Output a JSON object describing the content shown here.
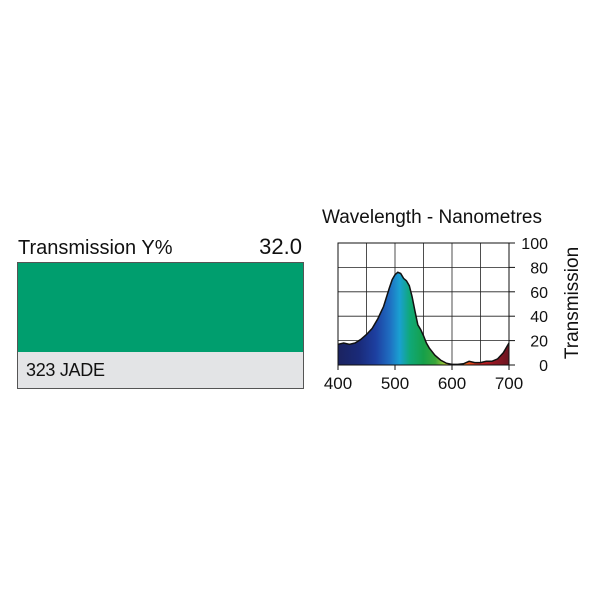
{
  "filter": {
    "transmission_label": "Transmission Y%",
    "transmission_value": "32.0",
    "name": "323 JADE",
    "swatch_color": "#009e6e"
  },
  "chart_data": {
    "type": "area",
    "title": "Wavelength - Nanometres",
    "xlabel": "",
    "ylabel": "Transmission",
    "xlim": [
      400,
      700
    ],
    "ylim": [
      0,
      100
    ],
    "x_ticks": [
      "400",
      "500",
      "600",
      "700"
    ],
    "y_ticks": [
      "0",
      "20",
      "40",
      "60",
      "80",
      "100"
    ],
    "grid": true,
    "fill": "visible-spectrum",
    "series": [
      {
        "x": [
          400,
          410,
          420,
          430,
          440,
          450,
          460,
          470,
          480,
          490,
          495,
          500,
          505,
          510,
          515,
          520,
          525,
          530,
          535,
          540,
          545,
          550,
          555,
          560,
          570,
          580,
          590,
          600,
          610,
          620,
          630,
          640,
          650,
          660,
          670,
          680,
          690,
          700
        ],
        "y": [
          17,
          18,
          17,
          18,
          21,
          25,
          30,
          38,
          48,
          63,
          70,
          74,
          76,
          75,
          71,
          69,
          65,
          56,
          44,
          33,
          29,
          24,
          18,
          14,
          8,
          4,
          1.5,
          0.5,
          0.5,
          1,
          3,
          2,
          2,
          3,
          3,
          5,
          10,
          18
        ]
      }
    ]
  }
}
